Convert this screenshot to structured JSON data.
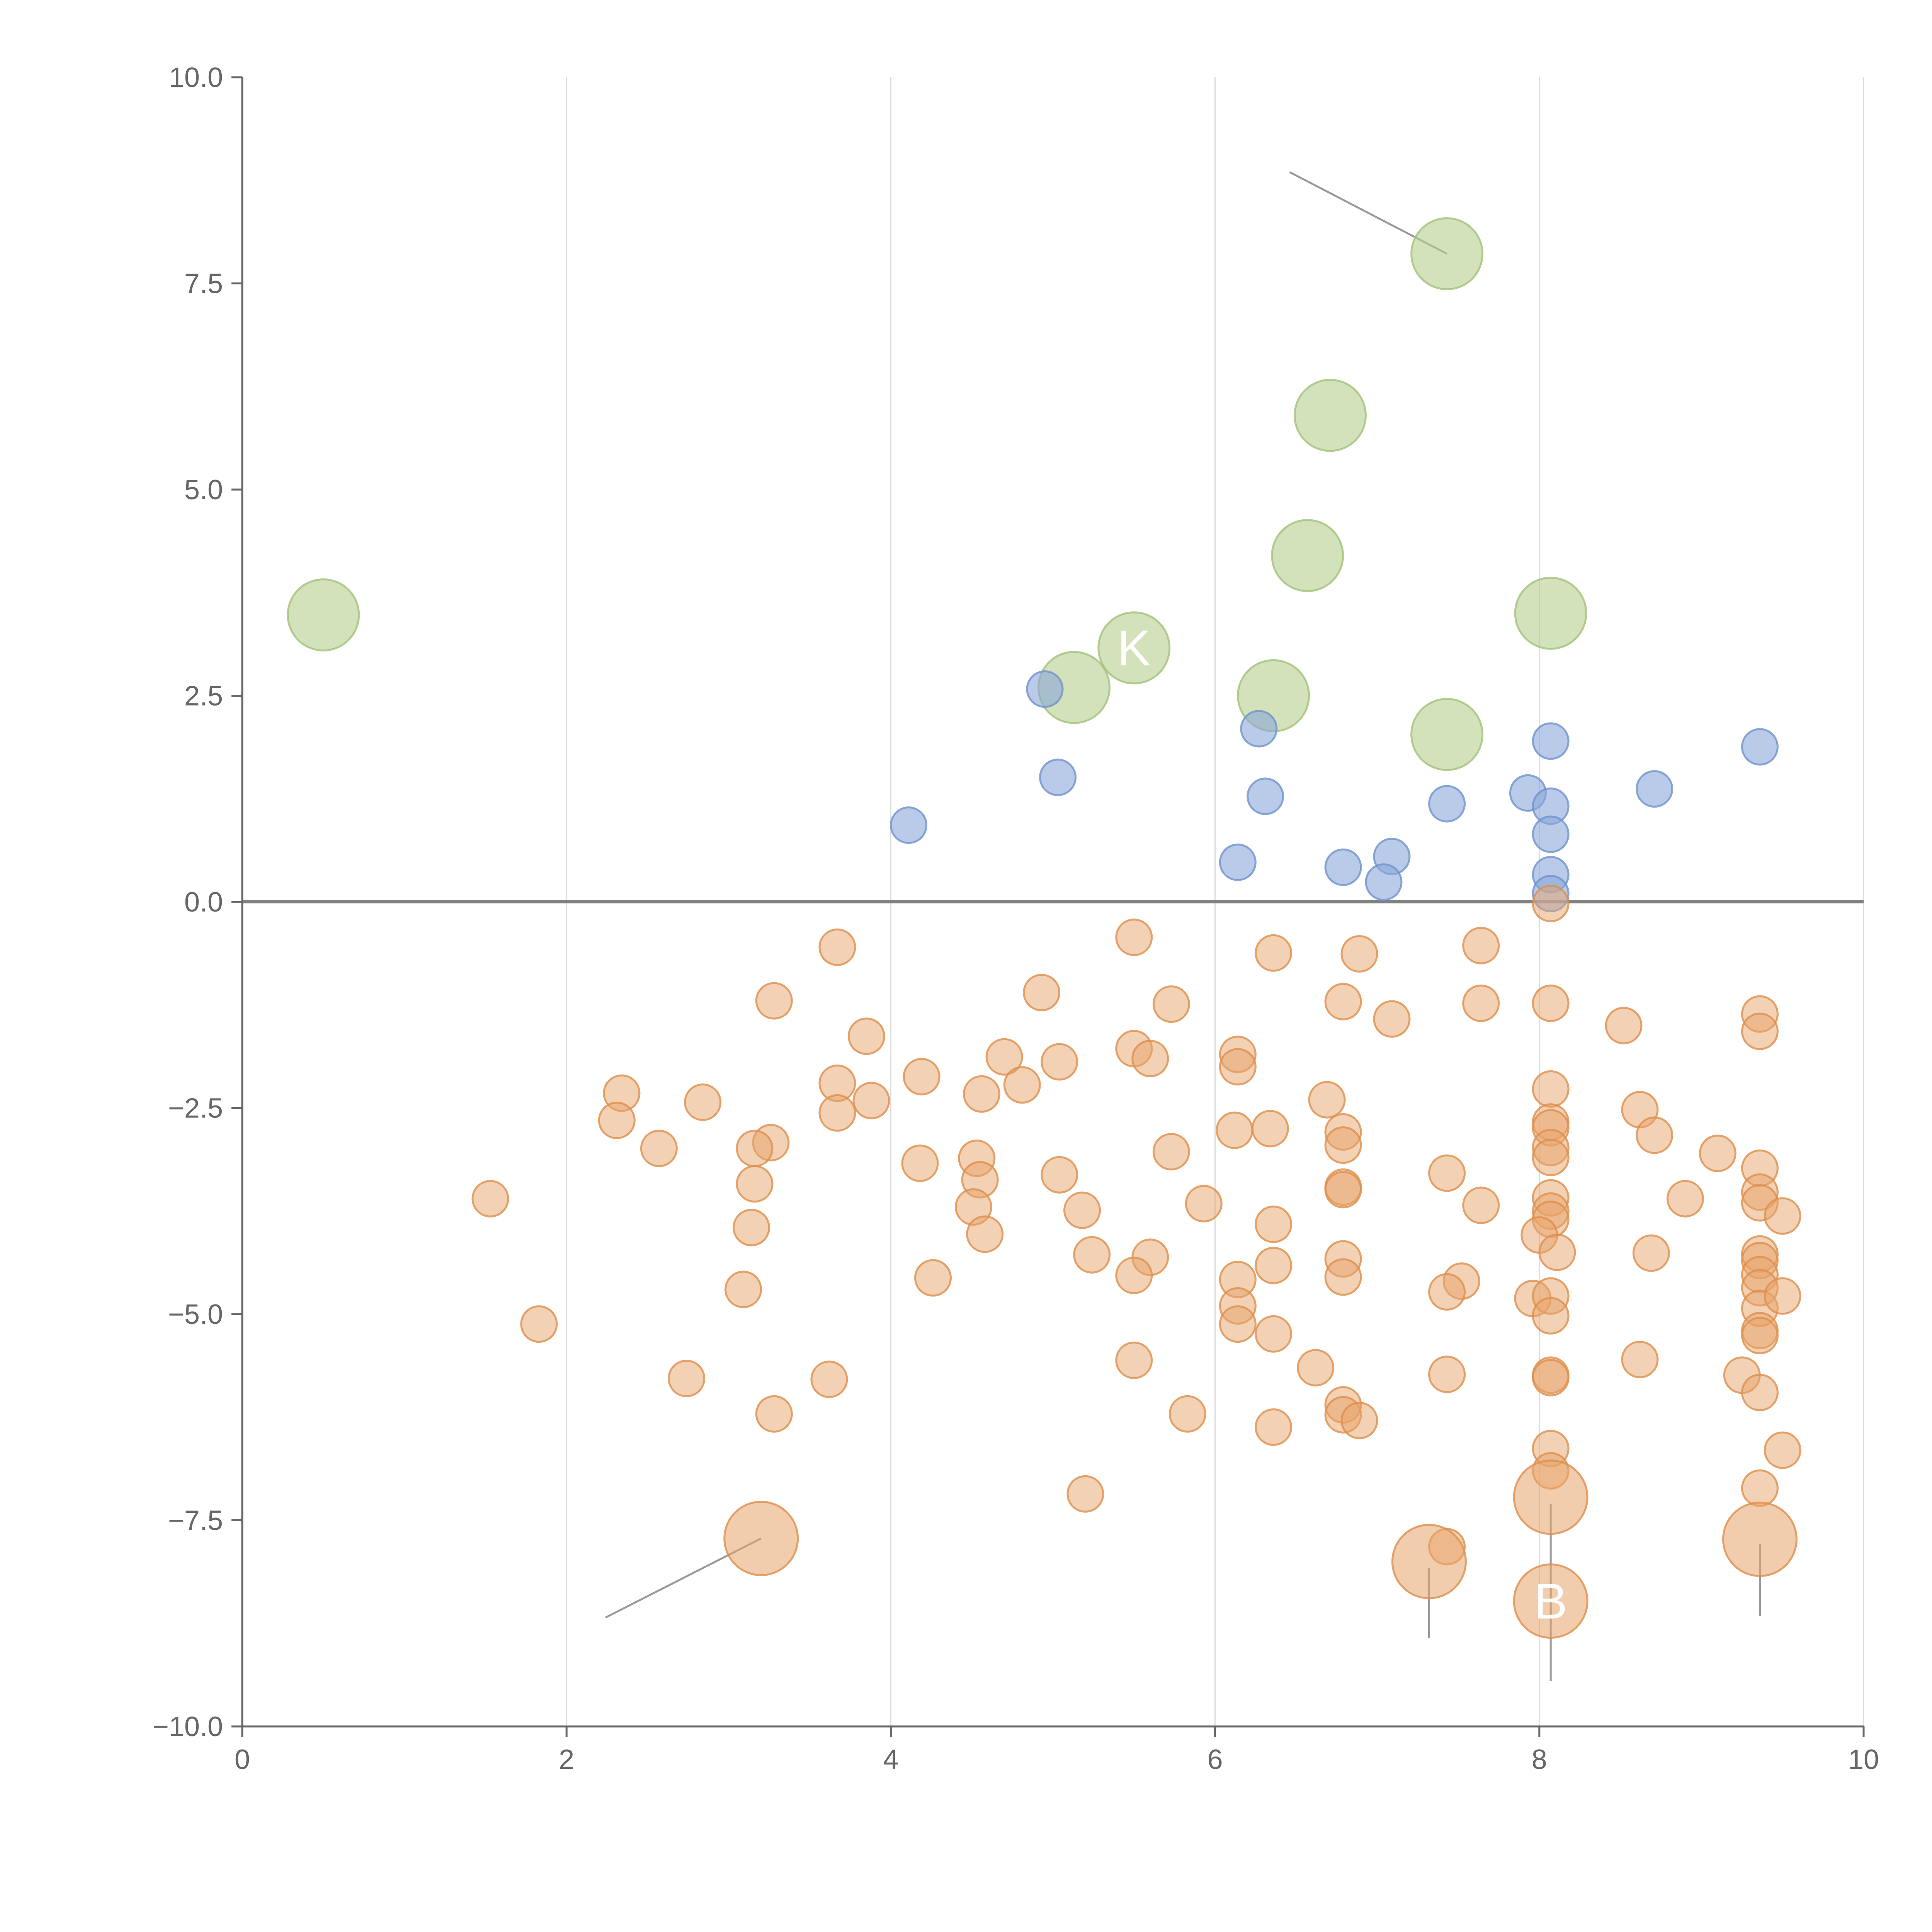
{
  "chart_data": {
    "type": "scatter",
    "title": "",
    "xlabel": "",
    "ylabel": "",
    "xlim": [
      0,
      10
    ],
    "ylim": [
      -10,
      10
    ],
    "x_ticks": [
      0,
      2,
      4,
      6,
      8,
      10
    ],
    "y_ticks": [
      10,
      7.5,
      5,
      2.5,
      0,
      -2.5,
      -5,
      -7.5,
      -10
    ],
    "x_tick_labels": [
      "0",
      "2",
      "4",
      "6",
      "8",
      "10"
    ],
    "y_tick_labels": [
      "10.0",
      "7.5",
      "5.0",
      "2.5",
      "0.0",
      "−2.5",
      "−5.0",
      "−7.5",
      "−10.0"
    ],
    "vertical_gridlines": true,
    "zero_line": true,
    "colors": {
      "green": "#b5cf8c",
      "green_stroke": "#a3c27a",
      "blue": "#8aa8d8",
      "blue_stroke": "#6f92cc",
      "orange": "#e7a46a",
      "orange_stroke": "#dd8e4c",
      "axis": "#666666",
      "grid": "#dddddd",
      "zero": "#808080",
      "leader": "#999999"
    },
    "series": [
      {
        "name": "green",
        "points": [
          [
            0.5,
            3.48
          ],
          [
            7.43,
            7.86
          ],
          [
            6.71,
            5.9
          ],
          [
            6.57,
            4.2
          ],
          [
            8.07,
            3.5
          ],
          [
            5.5,
            3.08
          ],
          [
            5.13,
            2.6
          ],
          [
            6.36,
            2.5
          ],
          [
            7.43,
            2.03
          ]
        ]
      },
      {
        "name": "blue",
        "points": [
          [
            4.95,
            2.58
          ],
          [
            6.27,
            2.1
          ],
          [
            5.03,
            1.51
          ],
          [
            4.11,
            0.93
          ],
          [
            6.31,
            1.28
          ],
          [
            8.07,
            1.95
          ],
          [
            9.36,
            1.88
          ],
          [
            8.71,
            1.37
          ],
          [
            7.93,
            1.32
          ],
          [
            7.43,
            1.19
          ],
          [
            8.07,
            1.16
          ],
          [
            8.07,
            0.82
          ],
          [
            6.14,
            0.48
          ],
          [
            6.79,
            0.42
          ],
          [
            7.09,
            0.55
          ],
          [
            7.04,
            0.24
          ],
          [
            8.07,
            0.33
          ],
          [
            8.07,
            0.1
          ]
        ]
      },
      {
        "name": "orange",
        "points": [
          [
            8.07,
            -0.02
          ],
          [
            3.67,
            -0.55
          ],
          [
            5.5,
            -0.43
          ],
          [
            6.36,
            -0.62
          ],
          [
            6.89,
            -0.63
          ],
          [
            7.64,
            -0.53
          ],
          [
            3.28,
            -1.2
          ],
          [
            4.93,
            -1.1
          ],
          [
            5.73,
            -1.24
          ],
          [
            6.79,
            -1.21
          ],
          [
            7.09,
            -1.42
          ],
          [
            7.64,
            -1.23
          ],
          [
            8.07,
            -1.23
          ],
          [
            8.52,
            -1.5
          ],
          [
            9.36,
            -1.36
          ],
          [
            9.36,
            -1.57
          ],
          [
            3.85,
            -1.63
          ],
          [
            5.5,
            -1.78
          ],
          [
            5.6,
            -1.9
          ],
          [
            6.14,
            -1.85
          ],
          [
            6.14,
            -2.0
          ],
          [
            4.7,
            -1.88
          ],
          [
            5.04,
            -1.94
          ],
          [
            4.19,
            -2.12
          ],
          [
            4.81,
            -2.22
          ],
          [
            4.56,
            -2.33
          ],
          [
            3.67,
            -2.2
          ],
          [
            3.88,
            -2.41
          ],
          [
            3.67,
            -2.56
          ],
          [
            2.34,
            -2.32
          ],
          [
            2.31,
            -2.65
          ],
          [
            2.84,
            -2.43
          ],
          [
            2.57,
            -2.99
          ],
          [
            3.26,
            -2.92
          ],
          [
            3.16,
            -2.99
          ],
          [
            6.69,
            -2.4
          ],
          [
            6.79,
            -2.79
          ],
          [
            6.79,
            -2.95
          ],
          [
            6.12,
            -2.77
          ],
          [
            6.34,
            -2.75
          ],
          [
            5.73,
            -3.03
          ],
          [
            4.18,
            -3.17
          ],
          [
            4.53,
            -3.11
          ],
          [
            4.55,
            -3.37
          ],
          [
            5.04,
            -3.31
          ],
          [
            3.16,
            -3.42
          ],
          [
            8.07,
            -2.27
          ],
          [
            8.07,
            -2.67
          ],
          [
            8.07,
            -2.74
          ],
          [
            8.07,
            -2.98
          ],
          [
            8.07,
            -3.1
          ],
          [
            8.62,
            -2.52
          ],
          [
            8.71,
            -2.83
          ],
          [
            9.1,
            -3.05
          ],
          [
            9.36,
            -3.23
          ],
          [
            9.36,
            -3.52
          ],
          [
            9.36,
            -3.65
          ],
          [
            8.9,
            -3.6
          ],
          [
            9.5,
            -3.81
          ],
          [
            7.43,
            -3.29
          ],
          [
            7.64,
            -3.68
          ],
          [
            6.79,
            -3.46
          ],
          [
            6.79,
            -3.49
          ],
          [
            5.93,
            -3.66
          ],
          [
            6.36,
            -3.91
          ],
          [
            5.18,
            -3.74
          ],
          [
            4.51,
            -3.7
          ],
          [
            4.58,
            -4.03
          ],
          [
            3.14,
            -3.95
          ],
          [
            1.53,
            -3.6
          ],
          [
            8.07,
            -3.59
          ],
          [
            8.07,
            -3.75
          ],
          [
            8.07,
            -3.85
          ],
          [
            8.0,
            -4.04
          ],
          [
            8.11,
            -4.25
          ],
          [
            8.69,
            -4.26
          ],
          [
            9.36,
            -4.27
          ],
          [
            9.36,
            -4.35
          ],
          [
            9.36,
            -4.52
          ],
          [
            9.36,
            -4.68
          ],
          [
            9.36,
            -4.93
          ],
          [
            9.5,
            -4.78
          ],
          [
            9.36,
            -5.2
          ],
          [
            9.36,
            -5.26
          ],
          [
            5.24,
            -4.28
          ],
          [
            5.6,
            -4.31
          ],
          [
            5.5,
            -4.53
          ],
          [
            6.36,
            -4.41
          ],
          [
            6.79,
            -4.33
          ],
          [
            6.79,
            -4.55
          ],
          [
            6.14,
            -4.58
          ],
          [
            6.14,
            -4.9
          ],
          [
            6.14,
            -5.12
          ],
          [
            6.36,
            -5.24
          ],
          [
            7.52,
            -4.6
          ],
          [
            7.43,
            -4.73
          ],
          [
            7.96,
            -4.81
          ],
          [
            8.07,
            -4.78
          ],
          [
            8.07,
            -5.02
          ],
          [
            4.26,
            -4.56
          ],
          [
            3.09,
            -4.7
          ],
          [
            1.83,
            -5.12
          ],
          [
            2.74,
            -5.78
          ],
          [
            3.62,
            -5.79
          ],
          [
            3.28,
            -6.21
          ],
          [
            5.5,
            -5.56
          ],
          [
            5.83,
            -6.21
          ],
          [
            6.36,
            -6.37
          ],
          [
            6.62,
            -5.65
          ],
          [
            6.79,
            -6.1
          ],
          [
            6.79,
            -6.22
          ],
          [
            6.89,
            -6.29
          ],
          [
            7.43,
            -5.73
          ],
          [
            8.07,
            -5.74
          ],
          [
            8.07,
            -5.77
          ],
          [
            8.62,
            -5.55
          ],
          [
            9.25,
            -5.74
          ],
          [
            9.36,
            -5.95
          ],
          [
            9.5,
            -6.65
          ],
          [
            8.07,
            -6.63
          ],
          [
            8.07,
            -6.9
          ],
          [
            9.36,
            -7.11
          ],
          [
            5.2,
            -7.18
          ],
          [
            7.43,
            -7.82
          ]
        ]
      },
      {
        "name": "orange_large",
        "points": [
          [
            3.2,
            -7.72
          ],
          [
            7.32,
            -8.0
          ],
          [
            8.07,
            -7.22
          ],
          [
            8.07,
            -8.48
          ],
          [
            9.36,
            -7.73
          ]
        ]
      }
    ],
    "annotations": [
      {
        "text": "K",
        "x": 5.5,
        "y": 3.08
      },
      {
        "text": "B",
        "x": 8.07,
        "y": -8.48
      }
    ],
    "leader_lines": [
      {
        "x1": 6.46,
        "y1": 8.85,
        "x2": 7.43,
        "y2": 7.86
      },
      {
        "x1": 2.24,
        "y1": -8.68,
        "x2": 3.2,
        "y2": -7.72
      },
      {
        "x1": 7.32,
        "y1": -8.08,
        "x2": 7.32,
        "y2": -8.93
      },
      {
        "x1": 8.07,
        "y1": -7.3,
        "x2": 8.07,
        "y2": -9.45
      },
      {
        "x1": 9.36,
        "y1": -7.79,
        "x2": 9.36,
        "y2": -8.66
      }
    ]
  }
}
